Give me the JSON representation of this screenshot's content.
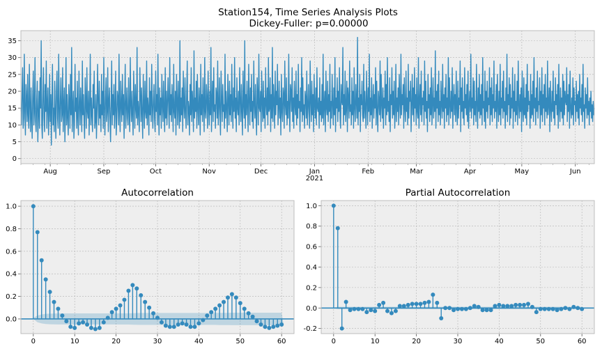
{
  "figure": {
    "suptitle_line1": "Station154, Time Series Analysis Plots",
    "suptitle_line2": "Dickey-Fuller: p=0.00000"
  },
  "colors": {
    "series": "#348ABD",
    "axes_bg": "#EEEEEE",
    "grid": "#B2B2B2",
    "confband": "#348ABD"
  },
  "chart_data": [
    {
      "type": "line",
      "name": "time-series",
      "x_tick_labels": [
        "Aug",
        "Sep",
        "Oct",
        "Nov",
        "Dec",
        "Jan",
        "Feb",
        "Mar",
        "Apr",
        "May",
        "Jun"
      ],
      "x_tick_sublabel": "2021",
      "x_range": [
        "2020-07-15",
        "2021-06-12"
      ],
      "ylim": [
        -1.5,
        38
      ],
      "y_ticks": [
        0,
        5,
        10,
        15,
        20,
        25,
        30,
        35
      ],
      "grid": true,
      "values_note_free": true,
      "values": [
        15,
        10,
        20,
        27,
        9,
        12,
        31,
        14,
        7,
        22,
        18,
        11,
        25,
        13,
        9,
        28,
        16,
        8,
        21,
        12,
        6,
        19,
        26,
        10,
        14,
        30,
        11,
        8,
        17,
        23,
        5,
        13,
        20,
        9,
        24,
        15,
        35,
        10,
        6,
        18,
        27,
        12,
        8,
        22,
        14,
        29,
        9,
        16,
        21,
        7,
        13,
        25,
        11,
        19,
        4,
        17,
        28,
        10,
        15,
        8,
        23,
        14,
        6,
        20,
        26,
        12,
        9,
        31,
        15,
        7,
        18,
        24,
        11,
        13,
        27,
        8,
        16,
        21,
        5,
        14,
        30,
        10,
        19,
        12,
        7,
        22,
        17,
        9,
        25,
        13,
        33,
        8,
        15,
        20,
        6,
        11,
        28,
        14,
        18,
        9,
        23,
        12,
        7,
        26,
        16,
        10,
        21,
        15,
        8,
        29,
        13,
        19,
        11,
        6,
        24,
        17,
        9,
        27,
        14,
        12,
        20,
        7,
        16,
        31,
        10,
        18,
        13,
        8,
        22,
        15,
        26,
        9,
        11,
        19,
        6,
        14,
        28,
        17,
        10,
        23,
        12,
        16,
        8,
        25,
        13,
        20,
        9,
        30,
        15,
        7,
        18,
        24,
        11,
        14,
        27,
        8,
        17,
        21,
        12,
        5,
        16,
        29,
        10,
        19,
        13,
        22,
        9,
        15,
        26,
        7,
        12,
        20,
        18,
        10,
        31,
        14,
        8,
        23,
        16,
        11,
        25,
        13,
        19,
        6,
        17,
        28,
        9,
        15,
        21,
        12,
        10,
        24,
        14,
        8,
        30,
        16,
        11,
        20,
        13,
        7,
        26,
        18,
        9,
        22,
        15,
        12,
        33,
        10,
        17,
        14,
        8,
        27,
        19,
        11,
        21,
        13,
        6,
        25,
        16,
        9,
        23,
        14,
        12,
        29,
        10,
        18,
        15,
        7,
        24,
        13,
        20,
        11,
        28,
        16,
        9,
        17,
        22,
        12,
        8,
        26,
        14,
        19,
        10,
        31,
        15,
        7,
        21,
        13,
        18,
        9,
        25,
        16,
        11,
        23,
        14,
        8,
        27,
        12,
        20,
        10,
        17,
        24,
        15,
        9,
        30,
        13,
        19,
        11,
        22,
        16,
        8,
        28,
        14,
        12,
        20,
        7,
        25,
        17,
        10,
        23,
        15,
        9,
        35,
        11,
        18,
        13,
        21,
        8,
        26,
        16,
        12,
        24,
        14,
        9,
        19,
        29,
        10,
        17,
        15,
        7,
        22,
        13,
        27,
        11,
        20,
        16,
        8,
        32,
        12,
        18,
        14,
        23,
        9,
        25,
        15,
        10,
        21,
        17,
        7,
        28,
        13,
        19,
        11,
        24,
        16,
        8,
        30,
        14,
        12,
        22,
        18,
        9,
        26,
        15,
        10,
        20,
        13,
        33,
        8,
        17,
        23,
        11,
        27,
        14,
        16,
        9,
        21,
        19,
        12,
        29,
        10,
        15,
        24,
        13,
        7,
        26,
        18,
        11,
        22,
        14,
        16,
        9,
        31,
        12,
        20,
        15,
        8,
        25,
        17,
        10,
        23,
        13,
        19,
        11,
        28,
        16,
        9,
        21,
        14,
        30,
        12,
        18,
        8,
        24,
        15,
        13,
        20,
        10,
        27,
        17,
        11,
        22,
        14,
        7,
        26,
        16,
        12,
        35,
        9,
        19,
        13,
        23,
        15,
        8,
        28,
        18,
        10,
        21,
        14,
        25,
        11,
        17,
        9,
        29,
        16,
        12,
        22,
        13,
        7,
        24,
        19,
        10,
        31,
        15,
        14,
        20,
        8,
        26,
        17,
        11,
        23,
        12,
        18,
        9,
        27,
        16,
        13,
        21,
        10,
        30,
        14,
        15,
        24,
        8,
        19,
        12,
        33,
        11,
        22,
        17,
        9,
        26,
        13,
        20,
        16,
        28,
        10,
        15,
        23,
        12,
        18,
        7,
        25,
        14,
        11,
        21,
        19,
        9,
        29,
        16,
        13,
        24,
        10,
        17,
        12,
        31,
        15,
        8,
        22,
        20,
        14,
        27,
        11,
        18,
        9,
        23,
        16,
        13,
        26,
        10,
        19,
        12,
        28,
        15,
        17,
        8,
        21,
        14,
        30,
        11,
        24,
        13,
        16,
        9,
        20,
        18,
        12,
        26,
        10,
        15,
        22,
        14,
        9,
        29,
        17,
        11,
        23,
        13,
        19,
        8,
        25,
        16,
        12,
        21,
        10,
        27,
        15,
        14,
        18,
        9,
        24,
        13,
        17,
        11,
        22,
        12,
        31,
        10,
        16,
        20,
        8,
        26,
        15,
        13,
        23,
        11,
        19,
        14,
        28,
        9,
        17,
        12,
        25,
        16,
        10,
        21,
        13,
        30,
        8,
        18,
        15,
        24,
        11,
        20,
        14,
        27,
        12,
        9,
        22,
        17,
        16,
        33,
        10,
        19,
        13,
        26,
        11,
        15,
        23,
        8,
        21,
        18,
        12,
        29,
        14,
        16,
        10,
        24,
        13,
        20,
        9,
        27,
        15,
        11,
        22,
        17,
        12,
        36,
        10,
        18,
        14,
        25,
        8,
        19,
        16,
        23,
        13,
        11,
        28,
        12,
        20,
        15,
        9,
        26,
        17,
        10,
        21,
        14,
        31,
        11,
        18,
        13,
        24,
        9,
        16,
        22,
        12,
        19,
        15,
        27,
        10,
        23,
        14,
        8,
        20,
        17,
        13,
        29,
        11,
        25,
        16,
        12,
        21,
        9,
        18,
        15,
        26,
        10,
        22,
        13,
        30,
        14,
        17,
        11,
        24,
        8,
        19,
        16,
        27,
        12,
        20,
        13,
        23,
        9,
        15,
        28,
        11,
        18,
        14,
        21,
        10,
        25,
        17,
        12,
        31,
        13,
        19,
        16,
        22,
        9,
        24,
        15,
        11,
        26,
        14,
        18,
        10,
        28,
        12,
        20,
        17,
        23,
        8,
        16,
        25,
        13,
        21,
        11,
        27,
        15,
        19,
        10,
        24,
        14,
        12,
        30,
        9,
        17,
        22,
        13,
        26,
        11,
        18,
        16,
        20,
        10,
        29,
        14,
        23,
        12,
        17,
        8,
        25,
        15,
        19,
        11,
        21,
        13,
        27,
        10,
        16,
        24,
        12,
        18,
        14,
        32,
        9,
        20,
        15,
        22,
        11,
        26,
        13,
        17,
        10,
        23,
        16,
        12,
        28,
        14,
        19,
        9,
        21,
        15,
        25,
        11,
        18,
        13,
        30,
        10,
        24,
        16,
        12,
        20,
        14,
        27,
        9,
        17,
        22,
        13,
        19,
        11,
        26,
        15,
        10,
        23,
        12,
        18,
        16,
        29,
        8,
        21,
        14,
        24,
        12,
        17,
        10,
        27,
        15,
        19,
        13,
        22,
        11,
        26,
        9,
        16,
        20,
        14,
        31,
        12,
        18,
        15,
        24,
        10,
        23,
        13,
        17,
        11,
        28,
        16,
        9,
        21,
        14,
        25,
        12,
        19,
        13,
        22,
        10,
        30,
        15,
        17,
        11,
        26,
        9,
        20,
        14,
        23,
        12,
        18,
        16,
        27,
        10,
        21,
        13,
        24,
        11,
        19,
        15,
        29,
        12,
        17,
        14,
        22,
        9,
        25,
        16,
        11,
        20,
        13,
        28,
        10,
        18,
        15,
        23,
        12,
        26,
        14,
        17,
        9,
        21,
        13,
        31,
        11,
        19,
        16,
        24,
        10,
        22,
        12,
        18,
        15,
        27,
        9,
        20,
        14,
        25,
        11,
        17,
        13,
        23,
        10,
        29,
        16,
        12,
        19,
        14,
        21,
        8,
        26,
        15,
        11,
        24,
        13,
        18,
        12,
        22,
        10,
        28,
        14,
        20,
        16,
        17,
        9,
        25,
        12,
        19,
        13,
        23,
        11,
        30,
        15,
        18,
        10,
        21,
        14,
        26,
        12,
        17,
        16,
        24,
        9,
        20,
        13,
        27,
        11,
        19,
        15,
        22,
        10,
        25,
        14,
        18,
        12,
        29,
        13,
        16,
        21,
        8,
        23,
        15,
        11,
        20,
        14,
        26,
        12,
        17,
        10,
        24,
        16,
        19,
        13,
        22,
        9,
        28,
        15,
        11,
        21,
        14,
        18,
        12,
        25,
        10,
        23,
        13,
        20,
        17,
        16,
        27,
        11,
        19,
        14,
        22,
        9,
        26,
        15,
        12,
        18,
        13,
        24,
        10,
        21,
        16,
        17,
        11,
        23,
        14,
        19,
        12,
        20,
        10,
        25,
        15,
        18,
        13,
        22,
        11,
        28,
        14,
        16,
        9,
        21,
        15,
        19,
        12,
        24,
        13,
        17,
        10,
        18,
        14,
        20,
        12,
        16,
        11,
        17,
        13,
        15
      ]
    },
    {
      "type": "scatter",
      "name": "autocorrelation",
      "title": "Autocorrelation",
      "x": [
        0,
        1,
        2,
        3,
        4,
        5,
        6,
        7,
        8,
        9,
        10,
        11,
        12,
        13,
        14,
        15,
        16,
        17,
        18,
        19,
        20,
        21,
        22,
        23,
        24,
        25,
        26,
        27,
        28,
        29,
        30,
        31,
        32,
        33,
        34,
        35,
        36,
        37,
        38,
        39,
        40,
        41,
        42,
        43,
        44,
        45,
        46,
        47,
        48,
        49,
        50,
        51,
        52,
        53,
        54,
        55,
        56,
        57,
        58,
        59,
        60
      ],
      "values": [
        1.0,
        0.77,
        0.52,
        0.35,
        0.24,
        0.15,
        0.09,
        0.03,
        -0.02,
        -0.07,
        -0.08,
        -0.04,
        -0.03,
        -0.05,
        -0.08,
        -0.09,
        -0.08,
        -0.03,
        0.01,
        0.06,
        0.09,
        0.12,
        0.17,
        0.25,
        0.3,
        0.27,
        0.21,
        0.15,
        0.1,
        0.05,
        0.01,
        -0.03,
        -0.06,
        -0.07,
        -0.07,
        -0.05,
        -0.04,
        -0.05,
        -0.07,
        -0.07,
        -0.04,
        -0.01,
        0.03,
        0.06,
        0.09,
        0.12,
        0.15,
        0.19,
        0.22,
        0.19,
        0.14,
        0.09,
        0.05,
        0.02,
        -0.02,
        -0.05,
        -0.07,
        -0.08,
        -0.07,
        -0.06,
        -0.05
      ],
      "conf_band_upper": [
        0.0,
        0.03,
        0.04,
        0.045,
        0.047,
        0.048,
        0.049,
        0.049,
        0.049,
        0.049,
        0.049,
        0.049,
        0.049,
        0.049,
        0.049,
        0.049,
        0.049,
        0.049,
        0.049,
        0.049,
        0.049,
        0.05,
        0.05,
        0.05,
        0.051,
        0.052,
        0.053,
        0.053,
        0.053,
        0.053,
        0.053,
        0.053,
        0.053,
        0.053,
        0.053,
        0.053,
        0.053,
        0.053,
        0.053,
        0.053,
        0.053,
        0.053,
        0.053,
        0.053,
        0.053,
        0.054,
        0.054,
        0.054,
        0.055,
        0.055,
        0.055,
        0.055,
        0.055,
        0.055,
        0.055,
        0.055,
        0.055,
        0.055,
        0.055,
        0.055,
        0.055
      ],
      "xlim": [
        -3,
        63
      ],
      "ylim": [
        -0.13,
        1.05
      ],
      "x_ticks": [
        0,
        10,
        20,
        30,
        40,
        50,
        60
      ],
      "y_ticks": [
        0.0,
        0.2,
        0.4,
        0.6,
        0.8,
        1.0
      ],
      "grid": true
    },
    {
      "type": "scatter",
      "name": "partial-autocorrelation",
      "title": "Partial Autocorrelation",
      "x": [
        0,
        1,
        2,
        3,
        4,
        5,
        6,
        7,
        8,
        9,
        10,
        11,
        12,
        13,
        14,
        15,
        16,
        17,
        18,
        19,
        20,
        21,
        22,
        23,
        24,
        25,
        26,
        27,
        28,
        29,
        30,
        31,
        32,
        33,
        34,
        35,
        36,
        37,
        38,
        39,
        40,
        41,
        42,
        43,
        44,
        45,
        46,
        47,
        48,
        49,
        50,
        51,
        52,
        53,
        54,
        55,
        56,
        57,
        58,
        59,
        60
      ],
      "values": [
        1.0,
        0.78,
        -0.2,
        0.06,
        -0.02,
        -0.01,
        -0.01,
        -0.01,
        -0.04,
        -0.02,
        -0.03,
        0.03,
        0.05,
        -0.03,
        -0.05,
        -0.03,
        0.02,
        0.02,
        0.03,
        0.04,
        0.04,
        0.04,
        0.05,
        0.06,
        0.13,
        0.05,
        -0.1,
        0.0,
        0.0,
        -0.02,
        -0.01,
        -0.01,
        -0.01,
        0.0,
        0.02,
        0.01,
        -0.02,
        -0.02,
        -0.02,
        0.02,
        0.03,
        0.02,
        0.02,
        0.02,
        0.03,
        0.03,
        0.03,
        0.04,
        0.01,
        -0.04,
        -0.01,
        -0.01,
        -0.01,
        -0.01,
        -0.02,
        -0.01,
        0.0,
        -0.01,
        0.01,
        0.0,
        -0.01
      ],
      "conf_band_upper": [
        0.0,
        0.012,
        0.012,
        0.012,
        0.012,
        0.012,
        0.012,
        0.012,
        0.012,
        0.012,
        0.012,
        0.012,
        0.012,
        0.012,
        0.012,
        0.012,
        0.012,
        0.012,
        0.012,
        0.012,
        0.012,
        0.012,
        0.012,
        0.012,
        0.012,
        0.012,
        0.012,
        0.012,
        0.012,
        0.012,
        0.012,
        0.012,
        0.012,
        0.012,
        0.012,
        0.012,
        0.012,
        0.012,
        0.012,
        0.012,
        0.012,
        0.012,
        0.012,
        0.012,
        0.012,
        0.012,
        0.012,
        0.012,
        0.012,
        0.012,
        0.012,
        0.012,
        0.012,
        0.012,
        0.012,
        0.012,
        0.012,
        0.012,
        0.012,
        0.012,
        0.012
      ],
      "xlim": [
        -3,
        63
      ],
      "ylim": [
        -0.25,
        1.05
      ],
      "x_ticks": [
        0,
        10,
        20,
        30,
        40,
        50,
        60
      ],
      "y_ticks": [
        -0.2,
        0.0,
        0.2,
        0.4,
        0.6,
        0.8,
        1.0
      ],
      "grid": true
    }
  ]
}
